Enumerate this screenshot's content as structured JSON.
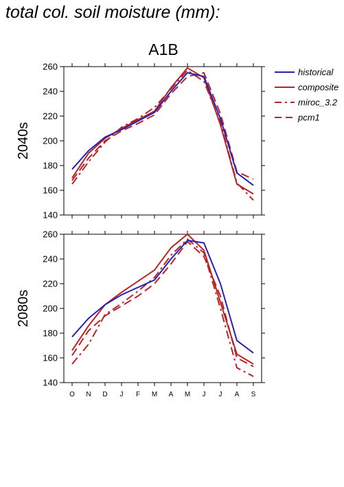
{
  "page_title": "total col. soil moisture (mm):",
  "scenario": "A1B",
  "colors": {
    "historical": "#2222bb",
    "models": "#bb2222"
  },
  "chart_data": [
    {
      "type": "line",
      "row_label": "2040s",
      "categories": [
        "O",
        "N",
        "D",
        "J",
        "F",
        "M",
        "A",
        "M",
        "J",
        "J",
        "A",
        "S"
      ],
      "ylim": [
        140,
        260
      ],
      "yticks": [
        140,
        160,
        180,
        200,
        220,
        240,
        260
      ],
      "series": [
        {
          "name": "historical",
          "style": "solid",
          "color": "#2222bb",
          "values": [
            177,
            192,
            203,
            209,
            216,
            223,
            240,
            255,
            252,
            218,
            174,
            164
          ]
        },
        {
          "name": "composite",
          "style": "solid",
          "color": "#bb2222",
          "values": [
            170,
            190,
            202,
            210,
            217,
            224,
            243,
            259,
            251,
            213,
            165,
            157
          ]
        },
        {
          "name": "miroc_3.2",
          "style": "dashdot",
          "color": "#bb2222",
          "values": [
            165,
            183,
            199,
            211,
            218,
            227,
            242,
            257,
            248,
            215,
            166,
            152
          ]
        },
        {
          "name": "pcm1",
          "style": "dashed",
          "color": "#bb2222",
          "values": [
            168,
            186,
            200,
            208,
            214,
            221,
            238,
            252,
            255,
            222,
            175,
            169
          ]
        }
      ]
    },
    {
      "type": "line",
      "row_label": "2080s",
      "categories": [
        "O",
        "N",
        "D",
        "J",
        "F",
        "M",
        "A",
        "M",
        "J",
        "J",
        "A",
        "S"
      ],
      "ylim": [
        140,
        260
      ],
      "yticks": [
        140,
        160,
        180,
        200,
        220,
        240,
        260
      ],
      "series": [
        {
          "name": "historical",
          "style": "solid",
          "color": "#2222bb",
          "values": [
            177,
            192,
            203,
            211,
            217,
            223,
            240,
            255,
            253,
            220,
            174,
            164
          ]
        },
        {
          "name": "composite",
          "style": "solid",
          "color": "#bb2222",
          "values": [
            166,
            186,
            203,
            213,
            222,
            231,
            249,
            260,
            247,
            205,
            163,
            155
          ]
        },
        {
          "name": "miroc_3.2",
          "style": "dashdot",
          "color": "#bb2222",
          "values": [
            155,
            171,
            195,
            204,
            214,
            225,
            243,
            256,
            245,
            200,
            152,
            145
          ]
        },
        {
          "name": "pcm1",
          "style": "dashed",
          "color": "#bb2222",
          "values": [
            162,
            182,
            194,
            202,
            210,
            220,
            236,
            254,
            242,
            210,
            160,
            153
          ]
        }
      ]
    }
  ]
}
